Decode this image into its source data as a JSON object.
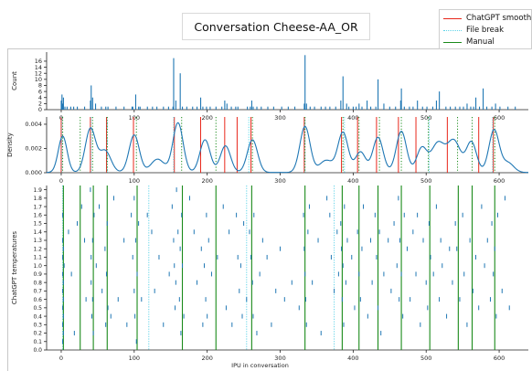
{
  "window_title": "Conversation Cheese-AA_OR",
  "legend": {
    "entries": [
      {
        "label": "ChatGPT smoothed",
        "color": "#e8261a",
        "style": "solid"
      },
      {
        "label": "File break",
        "color": "#5fd3e8",
        "style": "dotted"
      },
      {
        "label": "Manual",
        "color": "#1a8a1a",
        "style": "solid"
      }
    ]
  },
  "chart_data": [
    {
      "type": "bar",
      "ylabel": "Count",
      "xlim": [
        -20,
        640
      ],
      "ylim": [
        0,
        19
      ],
      "yticks": [
        0,
        2,
        4,
        6,
        8,
        10,
        12,
        14,
        16
      ],
      "xticks": [
        0,
        100,
        200,
        300,
        400,
        500,
        600
      ],
      "bar_color": "#1f77b4",
      "x": [
        0,
        1,
        2,
        3,
        5,
        8,
        13,
        17,
        22,
        32,
        40,
        41,
        43,
        47,
        55,
        61,
        64,
        75,
        86,
        97,
        98,
        102,
        106,
        108,
        118,
        125,
        131,
        140,
        147,
        153,
        154,
        157,
        163,
        166,
        172,
        180,
        186,
        191,
        194,
        199,
        204,
        212,
        220,
        224,
        227,
        233,
        239,
        242,
        255,
        259,
        261,
        263,
        268,
        274,
        283,
        291,
        302,
        311,
        320,
        333,
        334,
        336,
        341,
        347,
        356,
        362,
        368,
        376,
        383,
        386,
        391,
        394,
        400,
        404,
        408,
        412,
        419,
        424,
        431,
        434,
        442,
        450,
        458,
        465,
        466,
        470,
        477,
        482,
        488,
        495,
        501,
        509,
        514,
        518,
        527,
        533,
        540,
        546,
        551,
        556,
        561,
        565,
        568,
        573,
        578,
        583,
        590,
        595,
        601,
        612,
        622
      ],
      "values": [
        3,
        5,
        2,
        4,
        1,
        1,
        1,
        1,
        1,
        1,
        3,
        8,
        4,
        2,
        1,
        1,
        1,
        1,
        1,
        1,
        1,
        5,
        1,
        1,
        1,
        1,
        1,
        1,
        1,
        1,
        17,
        3,
        12,
        1,
        1,
        1,
        1,
        4,
        1,
        1,
        1,
        1,
        1,
        3,
        2,
        1,
        1,
        1,
        1,
        1,
        3,
        1,
        1,
        1,
        1,
        1,
        1,
        1,
        1,
        2,
        18,
        2,
        1,
        1,
        1,
        1,
        1,
        1,
        3,
        11,
        2,
        1,
        1,
        1,
        2,
        1,
        3,
        1,
        1,
        10,
        2,
        1,
        1,
        3,
        7,
        1,
        1,
        1,
        3,
        1,
        1,
        1,
        3,
        6,
        1,
        1,
        1,
        1,
        1,
        2,
        1,
        1,
        4,
        1,
        7,
        1,
        1,
        2,
        1,
        1,
        1
      ]
    },
    {
      "type": "line",
      "ylabel": "Density",
      "xlim": [
        -20,
        640
      ],
      "ylim": [
        0,
        0.0046
      ],
      "yticks": [
        0.0,
        0.002,
        0.004
      ],
      "ytick_labels": [
        "0.000",
        "0.002",
        "0.004"
      ],
      "xticks": [
        0,
        100,
        200,
        300,
        400,
        500,
        600
      ],
      "line_color": "#1f77b4",
      "density_peaks": [
        {
          "center": 2,
          "height": 0.003,
          "width": 6
        },
        {
          "center": 40,
          "height": 0.0036,
          "width": 7
        },
        {
          "center": 60,
          "height": 0.0018,
          "width": 8
        },
        {
          "center": 100,
          "height": 0.0031,
          "width": 7
        },
        {
          "center": 132,
          "height": 0.0011,
          "width": 9
        },
        {
          "center": 160,
          "height": 0.0041,
          "width": 7
        },
        {
          "center": 197,
          "height": 0.0027,
          "width": 7
        },
        {
          "center": 225,
          "height": 0.0022,
          "width": 7
        },
        {
          "center": 262,
          "height": 0.0027,
          "width": 7
        },
        {
          "center": 334,
          "height": 0.0038,
          "width": 7
        },
        {
          "center": 363,
          "height": 0.001,
          "width": 9
        },
        {
          "center": 386,
          "height": 0.0033,
          "width": 7
        },
        {
          "center": 410,
          "height": 0.0017,
          "width": 7
        },
        {
          "center": 434,
          "height": 0.0029,
          "width": 7
        },
        {
          "center": 466,
          "height": 0.0034,
          "width": 7
        },
        {
          "center": 494,
          "height": 0.002,
          "width": 7
        },
        {
          "center": 516,
          "height": 0.0024,
          "width": 9
        },
        {
          "center": 538,
          "height": 0.0026,
          "width": 9
        },
        {
          "center": 562,
          "height": 0.0025,
          "width": 7
        },
        {
          "center": 593,
          "height": 0.0035,
          "width": 7
        },
        {
          "center": 612,
          "height": 0.0008,
          "width": 8
        }
      ],
      "chatgpt_smoothed": [
        0,
        40,
        62,
        99,
        155,
        191,
        224,
        241,
        260,
        333,
        384,
        406,
        432,
        462,
        486,
        529,
        572,
        592
      ],
      "file_break": [
        1,
        41,
        63,
        154,
        257,
        334,
        388,
        504,
        591
      ],
      "manual": [
        2,
        26,
        43,
        63,
        103,
        165,
        212,
        262,
        334,
        386,
        408,
        436,
        466,
        503,
        543,
        563,
        594
      ]
    },
    {
      "type": "scatter",
      "marker": "vertical-dash",
      "xlabel": "IPU in conversation",
      "ylabel": "ChatGPT temperatures",
      "xlim": [
        -20,
        640
      ],
      "ylim": [
        0,
        1.95
      ],
      "xticks": [
        0,
        100,
        200,
        300,
        400,
        500,
        600
      ],
      "yticks": [
        0.0,
        0.1,
        0.2,
        0.3,
        0.4,
        0.5,
        0.6,
        0.7,
        0.8,
        0.9,
        1.0,
        1.1,
        1.2,
        1.3,
        1.4,
        1.5,
        1.6,
        1.7,
        1.8,
        1.9
      ],
      "ytick_labels": [
        "0.0",
        "0.1",
        "0.2",
        "0.3",
        "0.4",
        "0.5",
        "0.6",
        "0.7",
        "0.8",
        "0.9",
        "1.0",
        "1.1",
        "1.2",
        "1.3",
        "1.4",
        "1.5",
        "1.6",
        "1.7",
        "1.8",
        "1.9"
      ],
      "marker_color": "#1f77b4",
      "file_break": [
        2,
        120,
        254,
        374
      ],
      "manual": [
        3,
        26,
        44,
        63,
        104,
        166,
        212,
        261,
        334,
        385,
        408,
        434,
        466,
        505,
        544,
        563,
        594
      ],
      "points": [
        [
          2,
          1.6
        ],
        [
          2,
          1.3
        ],
        [
          2,
          1.1
        ],
        [
          2,
          0.9
        ],
        [
          2,
          0.7
        ],
        [
          2,
          0.5
        ],
        [
          2,
          0.3
        ],
        [
          2,
          0.1
        ],
        [
          3,
          1.2
        ],
        [
          3,
          0.8
        ],
        [
          3,
          0.6
        ],
        [
          3,
          0.4
        ],
        [
          3,
          0.2
        ],
        [
          4,
          1.0
        ],
        [
          10,
          1.4
        ],
        [
          14,
          0.9
        ],
        [
          18,
          0.2
        ],
        [
          22,
          1.5
        ],
        [
          28,
          1.7
        ],
        [
          32,
          1.3
        ],
        [
          34,
          0.6
        ],
        [
          40,
          1.9
        ],
        [
          41,
          1.1
        ],
        [
          41,
          0.8
        ],
        [
          42,
          0.4
        ],
        [
          43,
          1.3
        ],
        [
          43,
          0.6
        ],
        [
          44,
          0.2
        ],
        [
          45,
          1.6
        ],
        [
          48,
          1.0
        ],
        [
          52,
          1.7
        ],
        [
          56,
          0.7
        ],
        [
          60,
          1.2
        ],
        [
          61,
          0.3
        ],
        [
          62,
          0.9
        ],
        [
          63,
          1.5
        ],
        [
          64,
          0.5
        ],
        [
          68,
          0.4
        ],
        [
          72,
          1.8
        ],
        [
          78,
          0.6
        ],
        [
          86,
          1.3
        ],
        [
          90,
          0.3
        ],
        [
          96,
          1.6
        ],
        [
          98,
          1.1
        ],
        [
          100,
          1.8
        ],
        [
          100,
          0.7
        ],
        [
          101,
          0.4
        ],
        [
          102,
          1.3
        ],
        [
          103,
          0.1
        ],
        [
          104,
          0.9
        ],
        [
          106,
          1.5
        ],
        [
          110,
          0.6
        ],
        [
          118,
          1.6
        ],
        [
          124,
          1.4
        ],
        [
          128,
          0.7
        ],
        [
          134,
          1.1
        ],
        [
          140,
          0.3
        ],
        [
          148,
          0.9
        ],
        [
          152,
          1.7
        ],
        [
          154,
          1.3
        ],
        [
          155,
          1.0
        ],
        [
          156,
          0.5
        ],
        [
          157,
          0.8
        ],
        [
          158,
          1.9
        ],
        [
          160,
          1.4
        ],
        [
          162,
          0.6
        ],
        [
          163,
          1.2
        ],
        [
          164,
          0.2
        ],
        [
          165,
          1.6
        ],
        [
          166,
          1.0
        ],
        [
          168,
          0.4
        ],
        [
          176,
          1.8
        ],
        [
          182,
          1.4
        ],
        [
          186,
          0.8
        ],
        [
          192,
          1.2
        ],
        [
          194,
          0.3
        ],
        [
          196,
          1.0
        ],
        [
          198,
          0.6
        ],
        [
          199,
          1.6
        ],
        [
          200,
          0.4
        ],
        [
          202,
          1.3
        ],
        [
          206,
          0.9
        ],
        [
          214,
          1.1
        ],
        [
          222,
          1.7
        ],
        [
          226,
          0.5
        ],
        [
          230,
          1.4
        ],
        [
          234,
          0.3
        ],
        [
          240,
          1.6
        ],
        [
          242,
          1.1
        ],
        [
          244,
          0.7
        ],
        [
          246,
          1.0
        ],
        [
          248,
          0.4
        ],
        [
          250,
          1.5
        ],
        [
          254,
          0.6
        ],
        [
          258,
          1.4
        ],
        [
          260,
          1.1
        ],
        [
          262,
          0.8
        ],
        [
          263,
          0.4
        ],
        [
          264,
          1.6
        ],
        [
          268,
          0.2
        ],
        [
          272,
          0.9
        ],
        [
          276,
          1.3
        ],
        [
          282,
          1.1
        ],
        [
          288,
          0.3
        ],
        [
          294,
          0.7
        ],
        [
          300,
          1.2
        ],
        [
          306,
          0.6
        ],
        [
          316,
          0.8
        ],
        [
          326,
          0.5
        ],
        [
          332,
          1.6
        ],
        [
          333,
          1.2
        ],
        [
          334,
          0.9
        ],
        [
          335,
          0.6
        ],
        [
          336,
          0.3
        ],
        [
          338,
          1.4
        ],
        [
          340,
          1.7
        ],
        [
          344,
          0.8
        ],
        [
          352,
          1.3
        ],
        [
          356,
          0.2
        ],
        [
          364,
          1.8
        ],
        [
          368,
          1.6
        ],
        [
          370,
          1.1
        ],
        [
          374,
          0.7
        ],
        [
          378,
          1.4
        ],
        [
          380,
          0.9
        ],
        [
          383,
          1.5
        ],
        [
          384,
          1.2
        ],
        [
          385,
          0.6
        ],
        [
          386,
          1.0
        ],
        [
          387,
          0.3
        ],
        [
          388,
          1.7
        ],
        [
          390,
          0.8
        ],
        [
          392,
          1.3
        ],
        [
          398,
          1.1
        ],
        [
          402,
          0.5
        ],
        [
          406,
          1.4
        ],
        [
          408,
          0.9
        ],
        [
          410,
          0.6
        ],
        [
          412,
          1.2
        ],
        [
          414,
          1.7
        ],
        [
          420,
          0.4
        ],
        [
          424,
          1.3
        ],
        [
          426,
          0.8
        ],
        [
          430,
          1.6
        ],
        [
          432,
          1.1
        ],
        [
          434,
          0.5
        ],
        [
          436,
          1.4
        ],
        [
          438,
          0.2
        ],
        [
          442,
          0.9
        ],
        [
          448,
          1.3
        ],
        [
          452,
          0.7
        ],
        [
          456,
          1.5
        ],
        [
          460,
          1.0
        ],
        [
          462,
          1.8
        ],
        [
          463,
          0.6
        ],
        [
          464,
          1.3
        ],
        [
          466,
          0.9
        ],
        [
          468,
          0.4
        ],
        [
          470,
          1.6
        ],
        [
          474,
          1.2
        ],
        [
          478,
          0.6
        ],
        [
          482,
          1.4
        ],
        [
          486,
          0.9
        ],
        [
          488,
          1.6
        ],
        [
          492,
          0.3
        ],
        [
          496,
          1.3
        ],
        [
          500,
          0.8
        ],
        [
          502,
          0.5
        ],
        [
          504,
          1.5
        ],
        [
          506,
          1.1
        ],
        [
          510,
          0.9
        ],
        [
          514,
          1.7
        ],
        [
          518,
          0.6
        ],
        [
          520,
          1.3
        ],
        [
          522,
          1.0
        ],
        [
          528,
          0.4
        ],
        [
          532,
          1.2
        ],
        [
          536,
          0.8
        ],
        [
          540,
          1.5
        ],
        [
          542,
          1.2
        ],
        [
          546,
          0.6
        ],
        [
          550,
          1.6
        ],
        [
          552,
          0.9
        ],
        [
          556,
          0.3
        ],
        [
          560,
          1.3
        ],
        [
          564,
          0.7
        ],
        [
          568,
          1.1
        ],
        [
          572,
          0.5
        ],
        [
          576,
          1.7
        ],
        [
          580,
          1.0
        ],
        [
          584,
          1.3
        ],
        [
          588,
          0.6
        ],
        [
          590,
          1.5
        ],
        [
          592,
          0.9
        ],
        [
          594,
          1.2
        ],
        [
          596,
          0.4
        ],
        [
          598,
          1.6
        ],
        [
          604,
          0.7
        ],
        [
          608,
          1.8
        ],
        [
          614,
          0.5
        ]
      ]
    }
  ]
}
